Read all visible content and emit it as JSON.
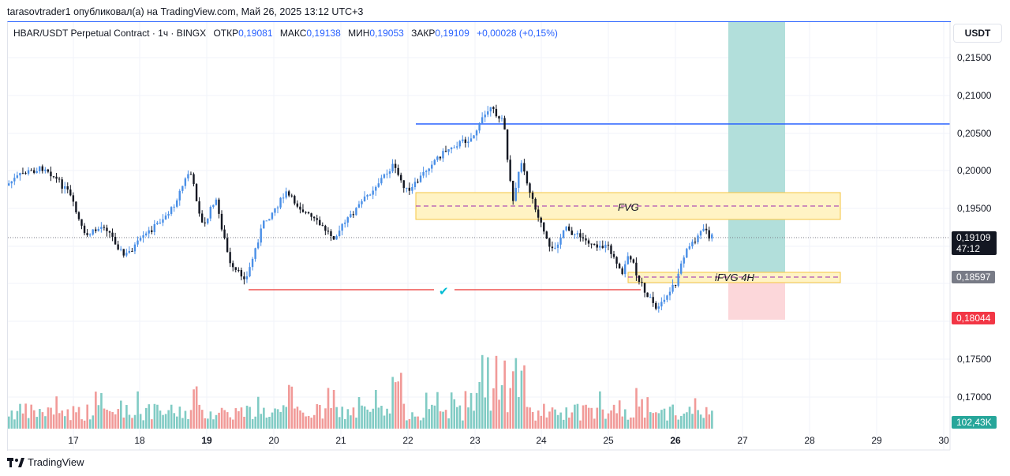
{
  "header": {
    "publish_line": "tarasovtrader1 опубликовал(а) на TradingView.com, Май 26, 2025 13:12 UTC+3"
  },
  "legend": {
    "symbol": "HBAR/USDT Perpetual Contract · 1ч · BINGX",
    "open_label": "ОТКР",
    "open_value": "0,19081",
    "high_label": "МАКС",
    "high_value": "0,19138",
    "low_label": "МИН",
    "low_value": "0,19053",
    "close_label": "ЗАКР",
    "close_value": "0,19109",
    "change": "+0,00028 (+0,15%)"
  },
  "price_axis": {
    "currency_button": "USDT",
    "labels": [
      "0,21500",
      "0,21000",
      "0,20500",
      "0,20000",
      "0,19500",
      "0,17500",
      "0,17000"
    ],
    "current_price": "0,19109",
    "countdown": "47:12",
    "marker_mid": "0,18597",
    "marker_low": "0,18044",
    "volume_value": "102,43K"
  },
  "time_axis": {
    "labels": [
      "17",
      "18",
      "19",
      "20",
      "21",
      "22",
      "23",
      "24",
      "25",
      "26",
      "27",
      "28",
      "29",
      "30"
    ],
    "bold": [
      "19",
      "26"
    ]
  },
  "drawings": {
    "fvg_label": "FVG",
    "ifvg_label": "iFVG 4H",
    "check_mark": "✔"
  },
  "colors": {
    "up": "#26a69a",
    "candle_up": "#4a8fe7",
    "candle_down": "#131722",
    "accent": "#2962ff",
    "down": "#ef5350"
  },
  "footer": {
    "brand": "TradingView"
  }
}
